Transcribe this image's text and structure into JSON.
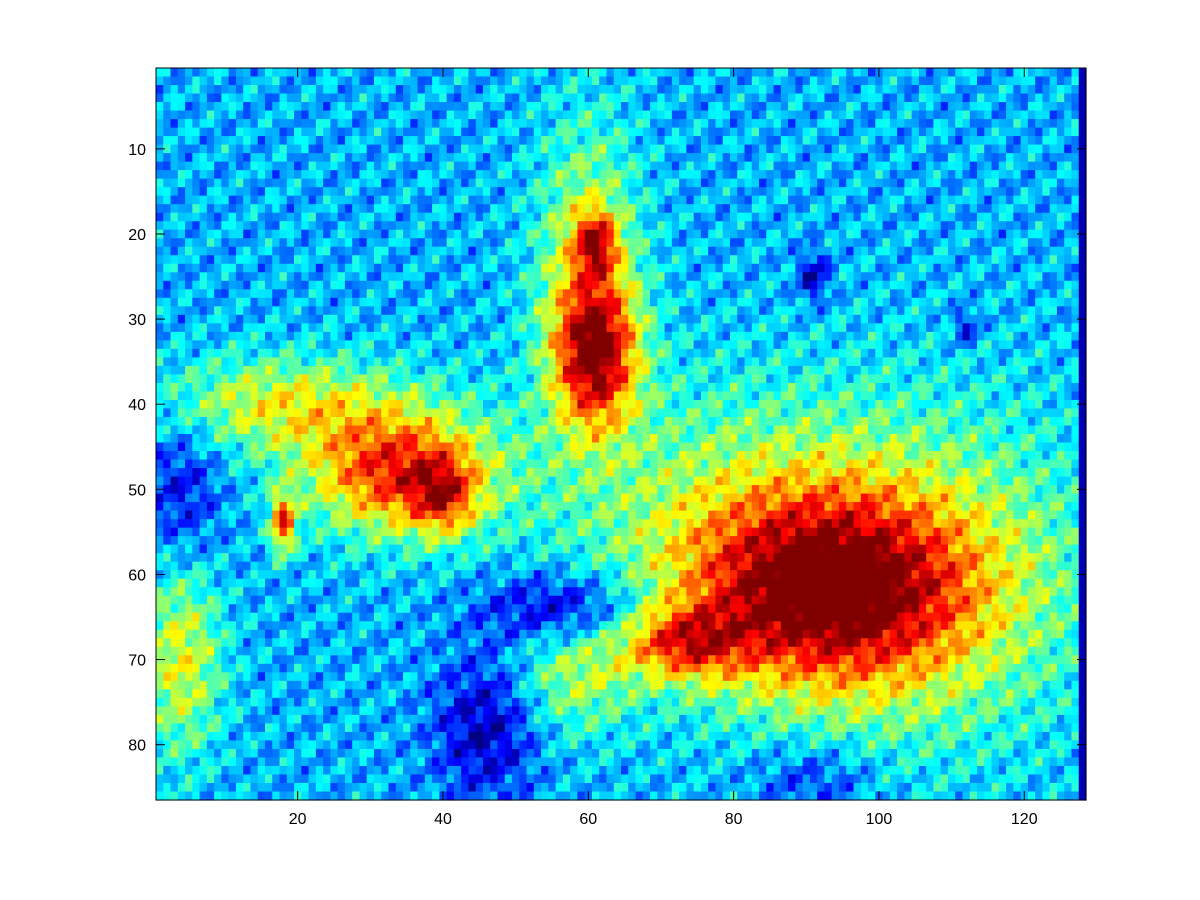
{
  "chart_data": {
    "type": "heatmap",
    "colormap": "jet",
    "title": "",
    "xlabel": "",
    "ylabel": "",
    "xlim": [
      0.5,
      128.5
    ],
    "ylim": [
      0.5,
      86.5
    ],
    "y_direction": "reversed",
    "grid": false,
    "colorbar": false,
    "n_cols": 128,
    "n_rows": 86,
    "value_range": [
      0,
      1
    ],
    "xticks": [
      20,
      40,
      60,
      80,
      100,
      120
    ],
    "yticks": [
      10,
      20,
      30,
      40,
      50,
      60,
      70,
      80
    ],
    "background_level": 0.3,
    "last_column_value": 0.05,
    "hot_regions": [
      {
        "name": "top-center-peak",
        "center": [
          61,
          34
        ],
        "sigma": [
          4,
          6
        ],
        "peak": 0.55
      },
      {
        "name": "top-center-tip",
        "center": [
          61,
          21
        ],
        "sigma": [
          2,
          2.5
        ],
        "peak": 0.4
      },
      {
        "name": "upper-plume",
        "center": [
          60,
          24
        ],
        "sigma": [
          5,
          12
        ],
        "peak": 0.3
      },
      {
        "name": "left-center-ridge",
        "center": [
          34,
          48
        ],
        "sigma": [
          9,
          5
        ],
        "peak": 0.55
      },
      {
        "name": "left-center-core",
        "center": [
          40,
          51
        ],
        "sigma": [
          3,
          3
        ],
        "peak": 0.3
      },
      {
        "name": "left-ridge-arm",
        "center": [
          18,
          40
        ],
        "sigma": [
          12,
          4
        ],
        "peak": 0.3
      },
      {
        "name": "left-spot",
        "center": [
          18,
          54
        ],
        "sigma": [
          1.2,
          2.5
        ],
        "peak": 0.5
      },
      {
        "name": "right-blob",
        "center": [
          92,
          62
        ],
        "sigma": [
          14,
          8
        ],
        "peak": 0.62
      },
      {
        "name": "right-blob-tail",
        "center": [
          73,
          68
        ],
        "sigma": [
          6,
          3
        ],
        "peak": 0.4
      },
      {
        "name": "right-halo",
        "center": [
          105,
          60
        ],
        "sigma": [
          18,
          14
        ],
        "peak": 0.25
      },
      {
        "name": "center-glow",
        "center": [
          75,
          50
        ],
        "sigma": [
          18,
          10
        ],
        "peak": 0.15
      },
      {
        "name": "bottom-left-edge",
        "center": [
          4,
          70
        ],
        "sigma": [
          4,
          8
        ],
        "peak": 0.3
      },
      {
        "name": "bottom-center-glow",
        "center": [
          58,
          72
        ],
        "sigma": [
          6,
          5
        ],
        "peak": 0.22
      }
    ],
    "cold_regions": [
      {
        "name": "center-trough",
        "center": [
          57,
          64
        ],
        "sigma": [
          8,
          3
        ],
        "peak": -0.28
      },
      {
        "name": "bottom-trough",
        "center": [
          46,
          78
        ],
        "sigma": [
          5,
          6
        ],
        "peak": -0.25
      },
      {
        "name": "left-edge-trough",
        "center": [
          4,
          50
        ],
        "sigma": [
          4,
          6
        ],
        "peak": -0.18
      },
      {
        "name": "small-dot-upper-right",
        "center": [
          91,
          25
        ],
        "sigma": [
          1.5,
          2
        ],
        "peak": -0.25
      },
      {
        "name": "small-dot-right",
        "center": [
          112,
          31
        ],
        "sigma": [
          1.2,
          1.5
        ],
        "peak": -0.2
      },
      {
        "name": "bottom-right-trough",
        "center": [
          91,
          84
        ],
        "sigma": [
          6,
          3
        ],
        "peak": -0.15
      }
    ]
  }
}
